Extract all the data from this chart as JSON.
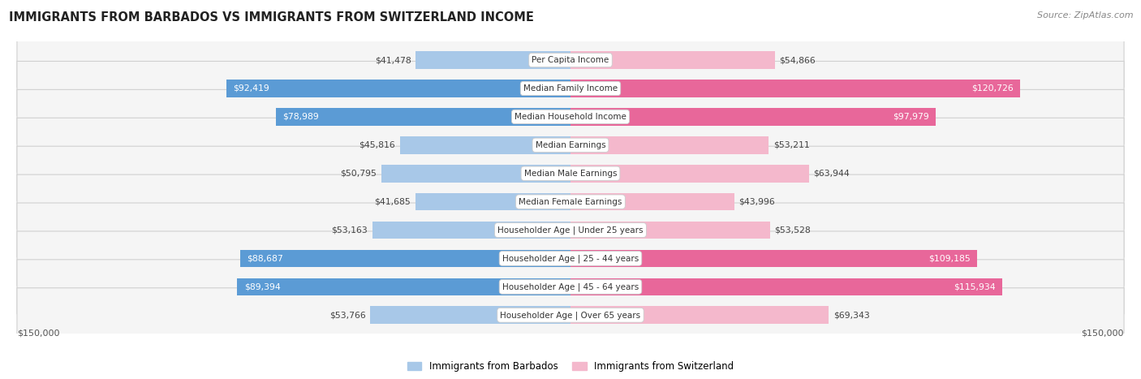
{
  "title": "IMMIGRANTS FROM BARBADOS VS IMMIGRANTS FROM SWITZERLAND INCOME",
  "source": "Source: ZipAtlas.com",
  "categories": [
    "Per Capita Income",
    "Median Family Income",
    "Median Household Income",
    "Median Earnings",
    "Median Male Earnings",
    "Median Female Earnings",
    "Householder Age | Under 25 years",
    "Householder Age | 25 - 44 years",
    "Householder Age | 45 - 64 years",
    "Householder Age | Over 65 years"
  ],
  "barbados_values": [
    41478,
    92419,
    78989,
    45816,
    50795,
    41685,
    53163,
    88687,
    89394,
    53766
  ],
  "switzerland_values": [
    54866,
    120726,
    97979,
    53211,
    63944,
    43996,
    53528,
    109185,
    115934,
    69343
  ],
  "barbados_color_light": "#a8c8e8",
  "barbados_color_dark": "#5b9bd5",
  "switzerland_color_light": "#f4b8cc",
  "switzerland_color_dark": "#e8679a",
  "max_value": 150000,
  "legend_barbados": "Immigrants from Barbados",
  "legend_switzerland": "Immigrants from Switzerland",
  "background_color": "#ffffff",
  "row_bg_color": "#f5f5f5",
  "barbados_threshold": 75000,
  "switzerland_threshold": 90000
}
